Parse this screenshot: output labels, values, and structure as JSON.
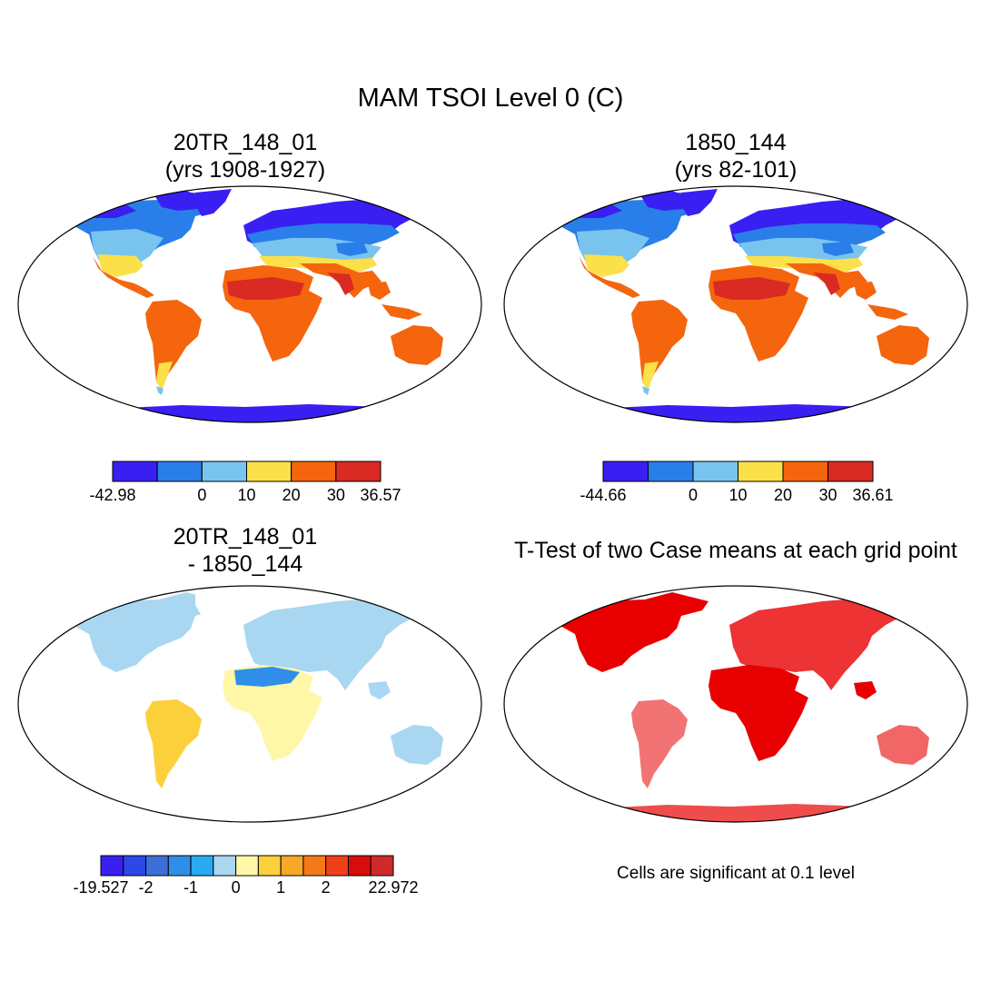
{
  "main_title": "MAM TSOI Level 0 (C)",
  "panels": [
    {
      "id": "p1",
      "title_line1": "20TR_148_01",
      "title_line2": "(yrs 1908-1927)"
    },
    {
      "id": "p2",
      "title_line1": "1850_144",
      "title_line2": "(yrs 82-101)"
    },
    {
      "id": "p3",
      "title_line1": "20TR_148_01",
      "title_line2": "- 1850_144"
    },
    {
      "id": "p4",
      "title_line1": "T-Test of two Case means at each grid point",
      "title_line2": ""
    }
  ],
  "colorbars": {
    "cb1": {
      "colors": [
        "#3a1ff2",
        "#2a7eea",
        "#79c4ef",
        "#fbe04a",
        "#f4650e",
        "#d92a24"
      ],
      "labels": [
        "-42.98",
        "0",
        "10",
        "20",
        "30",
        "36.57"
      ],
      "label_positions": [
        0,
        2,
        3,
        4,
        5,
        6
      ]
    },
    "cb2": {
      "colors": [
        "#3a1ff2",
        "#2a7eea",
        "#79c4ef",
        "#fbe04a",
        "#f4650e",
        "#d92a24"
      ],
      "labels": [
        "-44.66",
        "0",
        "10",
        "20",
        "30",
        "36.61"
      ],
      "label_positions": [
        0,
        2,
        3,
        4,
        5,
        6
      ]
    },
    "cb3": {
      "colors": [
        "#3a1ff2",
        "#2c48e6",
        "#3d6fd8",
        "#2f8ee8",
        "#2aaaf0",
        "#a9d7f2",
        "#fff7a8",
        "#fbd03a",
        "#f7a828",
        "#f47a18",
        "#f0401a",
        "#d80c0c",
        "#cf2a2a"
      ],
      "labels": [
        "-19.527",
        "-2",
        "-1",
        "0",
        "1",
        "2",
        "22.972"
      ],
      "label_positions": [
        0,
        2,
        4,
        6,
        8,
        10,
        13
      ]
    }
  },
  "significance_note": "Cells are significant at 0.1 level",
  "field_colors": {
    "ocean": "#ffffff",
    "sig_red": "#e80000"
  }
}
